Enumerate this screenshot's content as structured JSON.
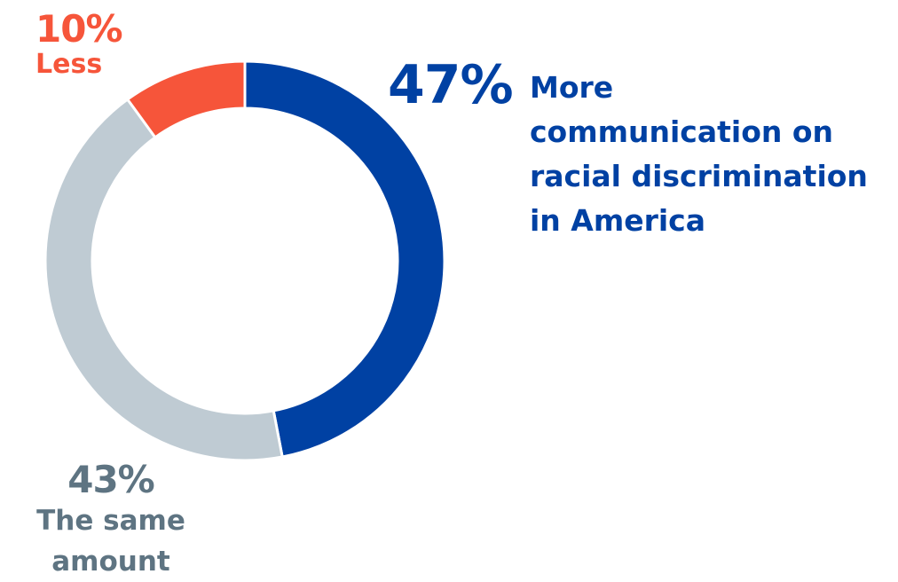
{
  "chart_data": {
    "type": "pie",
    "donut": true,
    "slices": [
      {
        "value": 47,
        "label": "47%",
        "name": "More communication on racial discrimination in America",
        "color": "#0041A3"
      },
      {
        "value": 43,
        "label": "43%",
        "name": "The same amount",
        "color": "#BFCBD3"
      },
      {
        "value": 10,
        "label": "10%",
        "name": "Less",
        "color": "#F6553A"
      }
    ],
    "title": "",
    "legend": "none"
  },
  "labels": {
    "more": {
      "pct": "47%",
      "desc": [
        "More",
        "communication on",
        "racial discrimination",
        "in America"
      ],
      "color": "#0041A3"
    },
    "same": {
      "pct": "43%",
      "desc": [
        "The same",
        "amount"
      ],
      "color": "#5E7482"
    },
    "less": {
      "pct": "10%",
      "desc": [
        "Less"
      ],
      "color": "#F6553A"
    }
  }
}
